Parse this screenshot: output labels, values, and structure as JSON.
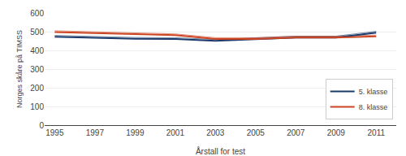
{
  "chart_data": {
    "type": "line",
    "xlabel": "Årstall for test",
    "ylabel": "Norges skåre på TIMSS",
    "x": [
      1995,
      1997,
      1999,
      2001,
      2003,
      2005,
      2007,
      2009,
      2011
    ],
    "series": [
      {
        "color": "#1a3a6b",
        "values": [
          480,
          475,
          469,
          468,
          458,
          467,
          476,
          476,
          502
        ]
      },
      {
        "color": "#cc4422",
        "values": [
          505,
          499,
          492,
          488,
          468,
          468,
          476,
          476,
          482
        ]
      },
      {
        "name": "5. klasse",
        "color": "#1a3a6b",
        "values": [
          473,
          468,
          462,
          461,
          451,
          460,
          469,
          469,
          495
        ]
      },
      {
        "name": "8. klasse",
        "color": "#cc4422",
        "values": [
          498,
          492,
          485,
          481,
          461,
          461,
          469,
          469,
          475
        ]
      }
    ],
    "xlim": [
      1994.5,
      2012
    ],
    "xticks": [
      1995,
      1997,
      1999,
      2001,
      2003,
      2005,
      2007,
      2009,
      2011
    ],
    "ylim": [
      0,
      600
    ],
    "yticks": [
      0,
      100,
      200,
      300,
      400,
      500,
      600
    ],
    "grid": "y",
    "legend": "lower right"
  }
}
